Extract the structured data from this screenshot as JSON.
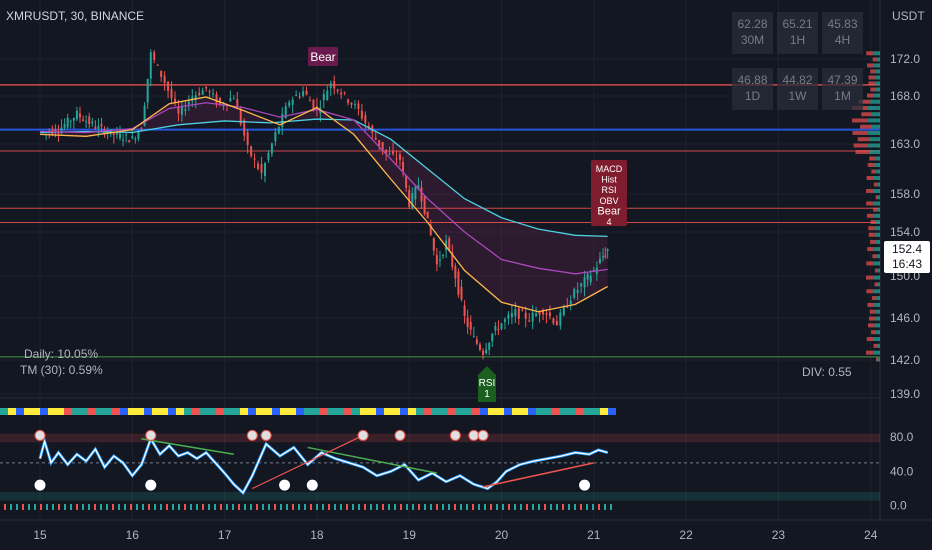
{
  "header": {
    "symbol_line": "XMRUSDT, 30, BINANCE",
    "currency": "USDT"
  },
  "stats": [
    {
      "value": "62.28",
      "tf": "30M"
    },
    {
      "value": "65.21",
      "tf": "1H"
    },
    {
      "value": "45.83",
      "tf": "4H"
    },
    {
      "value": "46.88",
      "tf": "1D"
    },
    {
      "value": "44.82",
      "tf": "1W"
    },
    {
      "value": "47.39",
      "tf": "1M"
    }
  ],
  "info": {
    "daily": "Daily: 10.05%",
    "tm": "TM (30): 0.59%",
    "div": "DIV: 0.55"
  },
  "labels": {
    "bear_top": "Bear",
    "signal_lines": [
      "MACD",
      "Hist",
      "RSI",
      "OBV",
      "Bear",
      "4"
    ],
    "rsi_label": [
      "RSI",
      "1"
    ]
  },
  "price_tag": {
    "price": "152.4",
    "countdown": "16:43"
  },
  "colors": {
    "bg": "#131722",
    "up": "#26a69a",
    "down": "#ef5350",
    "blue_line": "#2962ff",
    "green_line": "#4caf50"
  },
  "chart_data": {
    "type": "line",
    "title": "XMRUSDT, 30, BINANCE",
    "xlabel": "",
    "ylabel": "USDT",
    "x_ticks": [
      "15",
      "16",
      "17",
      "18",
      "19",
      "20",
      "21",
      "22",
      "23",
      "24"
    ],
    "y_ticks": [
      "172.0",
      "168.0",
      "163.0",
      "158.0",
      "154.0",
      "150.0",
      "146.0",
      "142.0",
      "139.0"
    ],
    "ylim": [
      139,
      174
    ],
    "series": [
      {
        "values": [
          [
            15.0,
            164.2
          ],
          [
            15.2,
            164.5
          ],
          [
            15.4,
            166.1
          ],
          [
            15.6,
            164.8
          ],
          [
            15.8,
            164.0
          ],
          [
            16.0,
            163.5
          ],
          [
            16.1,
            164.8
          ],
          [
            16.2,
            172.5
          ],
          [
            16.35,
            169.5
          ],
          [
            16.5,
            166.0
          ],
          [
            16.65,
            168.0
          ],
          [
            16.8,
            168.8
          ],
          [
            16.95,
            167.0
          ],
          [
            17.1,
            168.0
          ],
          [
            17.25,
            162.5
          ],
          [
            17.4,
            160.0
          ],
          [
            17.55,
            164.0
          ],
          [
            17.7,
            167.5
          ],
          [
            17.85,
            168.5
          ],
          [
            18.0,
            166.5
          ],
          [
            18.15,
            169.5
          ],
          [
            18.3,
            168.0
          ],
          [
            18.45,
            166.5
          ],
          [
            18.6,
            164.0
          ],
          [
            18.75,
            162.0
          ],
          [
            18.9,
            161.5
          ],
          [
            19.0,
            157.0
          ],
          [
            19.1,
            159.0
          ],
          [
            19.2,
            155.0
          ],
          [
            19.3,
            151.0
          ],
          [
            19.4,
            153.0
          ],
          [
            19.5,
            150.0
          ],
          [
            19.6,
            146.0
          ],
          [
            19.7,
            144.0
          ],
          [
            19.8,
            142.8
          ],
          [
            19.9,
            144.5
          ],
          [
            20.0,
            145.5
          ],
          [
            20.15,
            146.5
          ],
          [
            20.3,
            146.0
          ],
          [
            20.45,
            146.8
          ],
          [
            20.6,
            145.5
          ],
          [
            20.75,
            148.0
          ],
          [
            20.9,
            149.5
          ],
          [
            21.0,
            150.5
          ],
          [
            21.1,
            151.8
          ],
          [
            21.15,
            152.4
          ]
        ]
      },
      {
        "values": [
          [
            15.0,
            164.2
          ],
          [
            15.5,
            164.3
          ],
          [
            16.0,
            164.2
          ],
          [
            16.5,
            165.0
          ],
          [
            17.0,
            165.4
          ],
          [
            17.5,
            165.2
          ],
          [
            18.0,
            165.6
          ],
          [
            18.4,
            165.5
          ],
          [
            18.8,
            163.5
          ],
          [
            19.2,
            160.5
          ],
          [
            19.6,
            157.5
          ],
          [
            20.0,
            155.5
          ],
          [
            20.4,
            154.3
          ],
          [
            20.8,
            153.7
          ],
          [
            21.15,
            153.6
          ]
        ]
      },
      {
        "values": [
          [
            15.0,
            164.3
          ],
          [
            15.5,
            164.2
          ],
          [
            16.0,
            164.6
          ],
          [
            16.4,
            166.7
          ],
          [
            16.8,
            167.3
          ],
          [
            17.2,
            166.8
          ],
          [
            17.6,
            165.8
          ],
          [
            18.0,
            166.6
          ],
          [
            18.4,
            165.5
          ],
          [
            18.8,
            161.5
          ],
          [
            19.2,
            157.5
          ],
          [
            19.6,
            154.0
          ],
          [
            20.0,
            151.5
          ],
          [
            20.4,
            150.7
          ],
          [
            20.8,
            150.2
          ],
          [
            21.15,
            150.6
          ]
        ]
      },
      {
        "values": [
          [
            15.0,
            164.0
          ],
          [
            15.5,
            163.8
          ],
          [
            16.0,
            164.5
          ],
          [
            16.4,
            167.2
          ],
          [
            16.8,
            167.9
          ],
          [
            17.2,
            166.5
          ],
          [
            17.6,
            165.0
          ],
          [
            18.0,
            166.8
          ],
          [
            18.4,
            164.0
          ],
          [
            18.8,
            159.5
          ],
          [
            19.2,
            155.0
          ],
          [
            19.6,
            150.5
          ],
          [
            20.0,
            147.5
          ],
          [
            20.4,
            146.6
          ],
          [
            20.8,
            147.3
          ],
          [
            21.15,
            149.0
          ]
        ]
      }
    ],
    "hlines": [
      {
        "y": 169.2,
        "color": "#ef5350",
        "width": 1.5
      },
      {
        "y": 164.5,
        "color": "#2962ff",
        "width": 2
      },
      {
        "y": 162.3,
        "color": "#ef5350",
        "width": 1
      },
      {
        "y": 156.5,
        "color": "#ef5350",
        "width": 1
      },
      {
        "y": 155.0,
        "color": "#ef5350",
        "width": 1
      },
      {
        "y": 142.3,
        "color": "#4caf50",
        "width": 1
      }
    ],
    "oscillator": {
      "y_ticks": [
        "80.0",
        "40.0",
        "0.0"
      ],
      "ylim": [
        -5,
        100
      ],
      "values": [
        [
          15.0,
          55
        ],
        [
          15.05,
          75
        ],
        [
          15.12,
          50
        ],
        [
          15.2,
          62
        ],
        [
          15.3,
          48
        ],
        [
          15.4,
          60
        ],
        [
          15.5,
          52
        ],
        [
          15.6,
          66
        ],
        [
          15.7,
          45
        ],
        [
          15.8,
          58
        ],
        [
          15.9,
          50
        ],
        [
          16.0,
          35
        ],
        [
          16.1,
          48
        ],
        [
          16.2,
          78
        ],
        [
          16.3,
          60
        ],
        [
          16.4,
          70
        ],
        [
          16.5,
          58
        ],
        [
          16.6,
          62
        ],
        [
          16.7,
          55
        ],
        [
          16.8,
          62
        ],
        [
          16.9,
          50
        ],
        [
          17.0,
          38
        ],
        [
          17.1,
          25
        ],
        [
          17.2,
          15
        ],
        [
          17.3,
          35
        ],
        [
          17.45,
          72
        ],
        [
          17.6,
          58
        ],
        [
          17.75,
          68
        ],
        [
          17.9,
          48
        ],
        [
          18.05,
          62
        ],
        [
          18.2,
          55
        ],
        [
          18.35,
          50
        ],
        [
          18.5,
          45
        ],
        [
          18.65,
          35
        ],
        [
          18.8,
          40
        ],
        [
          18.95,
          48
        ],
        [
          19.1,
          30
        ],
        [
          19.25,
          38
        ],
        [
          19.4,
          28
        ],
        [
          19.55,
          35
        ],
        [
          19.7,
          25
        ],
        [
          19.85,
          20
        ],
        [
          19.95,
          28
        ],
        [
          20.05,
          40
        ],
        [
          20.2,
          48
        ],
        [
          20.35,
          52
        ],
        [
          20.5,
          55
        ],
        [
          20.65,
          58
        ],
        [
          20.8,
          62
        ],
        [
          20.95,
          60
        ],
        [
          21.05,
          65
        ],
        [
          21.15,
          62
        ]
      ]
    }
  }
}
